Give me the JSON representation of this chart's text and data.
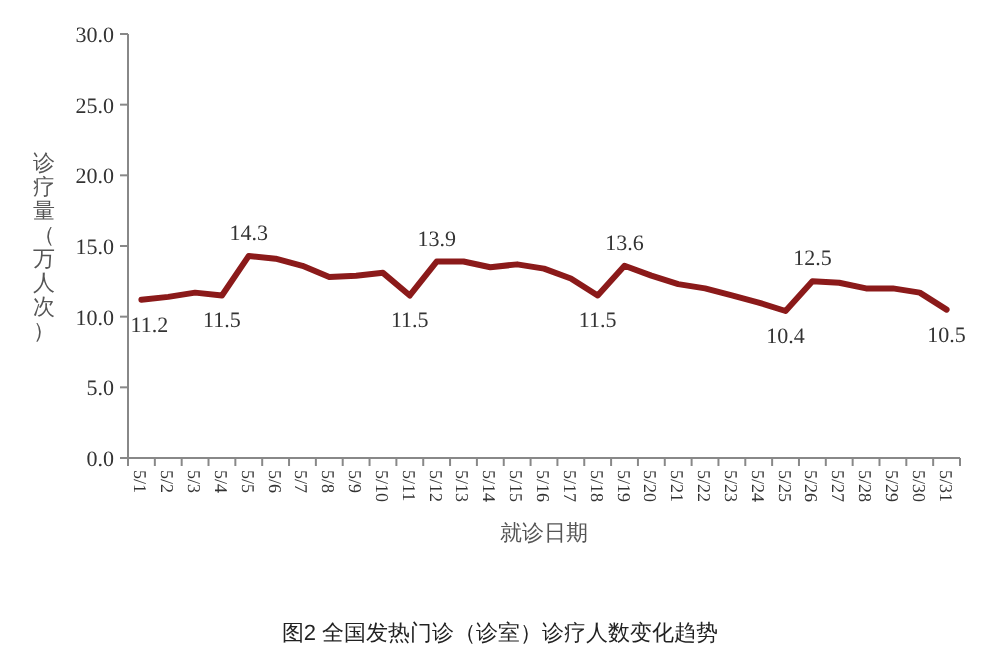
{
  "chart_data": {
    "type": "line",
    "ylabel": "诊疗量（万人次）",
    "xlabel": "就诊日期",
    "annotations": [
      "图2 全国发热门诊（诊室）诊疗人数变化趋势"
    ],
    "categories": [
      "5/1",
      "5/2",
      "5/3",
      "5/4",
      "5/5",
      "5/6",
      "5/7",
      "5/8",
      "5/9",
      "5/10",
      "5/11",
      "5/12",
      "5/13",
      "5/14",
      "5/15",
      "5/16",
      "5/17",
      "5/18",
      "5/19",
      "5/20",
      "5/21",
      "5/22",
      "5/23",
      "5/24",
      "5/25",
      "5/26",
      "5/27",
      "5/28",
      "5/29",
      "5/30",
      "5/31"
    ],
    "series": [
      {
        "color": "#8b1a1a",
        "values": [
          11.2,
          11.4,
          11.7,
          11.5,
          14.3,
          14.1,
          13.6,
          12.8,
          12.9,
          13.1,
          11.5,
          13.9,
          13.9,
          13.5,
          13.7,
          13.4,
          12.7,
          11.5,
          13.6,
          12.9,
          12.3,
          12.0,
          11.5,
          11.0,
          10.4,
          12.5,
          12.4,
          12.0,
          12.0,
          11.7,
          10.5
        ],
        "value_labels": [
          "11.2",
          null,
          null,
          "11.5",
          "14.3",
          null,
          null,
          null,
          null,
          null,
          "11.5",
          "13.9",
          null,
          null,
          null,
          null,
          null,
          "11.5",
          "13.6",
          null,
          null,
          null,
          null,
          null,
          "10.4",
          "12.5",
          null,
          null,
          null,
          null,
          "10.5"
        ]
      }
    ],
    "ylim": [
      0,
      30
    ],
    "yticks": [
      {
        "value": 0,
        "label": "0.0"
      },
      {
        "value": 5,
        "label": "5.0"
      },
      {
        "value": 10,
        "label": "10.0"
      },
      {
        "value": 15,
        "label": "15.0"
      },
      {
        "value": 20,
        "label": "20.0"
      },
      {
        "value": 25,
        "label": "25.0"
      },
      {
        "value": 30,
        "label": "30.0"
      }
    ],
    "grid": false,
    "marker": "none",
    "line_style": "solid"
  }
}
